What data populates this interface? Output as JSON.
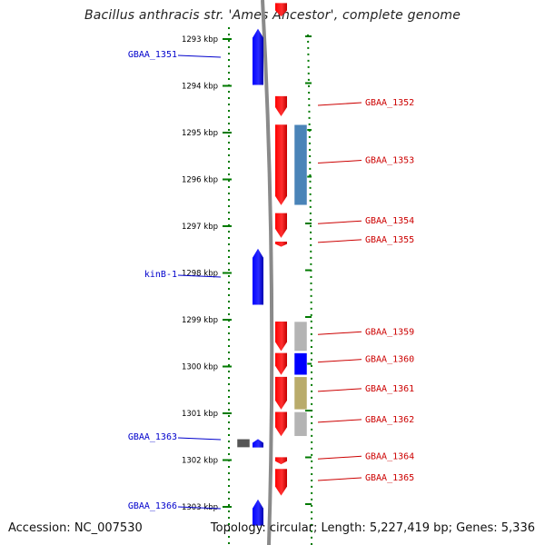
{
  "title": "Bacillus anthracis str. 'Ames Ancestor', complete genome",
  "accession": "Accession: NC_007530",
  "summary": "Topology: circular; Length: 5,227,419 bp; Genes: 5,336",
  "colors": {
    "forward": "#ff0000",
    "reverse": "#0000ff",
    "backbone": "#8a8a8a",
    "ticks": "#007a00",
    "cog_steel": "#4a84b8",
    "cog_grey": "#b4b4b4",
    "cog_olive": "#b9ab6b",
    "cog_dark": "#555555"
  },
  "ruler": [
    {
      "label": "1293 kbp",
      "kbp": 1293
    },
    {
      "label": "1294 kbp",
      "kbp": 1294
    },
    {
      "label": "1295 kbp",
      "kbp": 1295
    },
    {
      "label": "1296 kbp",
      "kbp": 1296
    },
    {
      "label": "1297 kbp",
      "kbp": 1297
    },
    {
      "label": "1298 kbp",
      "kbp": 1298
    },
    {
      "label": "1299 kbp",
      "kbp": 1299
    },
    {
      "label": "1300 kbp",
      "kbp": 1300
    },
    {
      "label": "1301 kbp",
      "kbp": 1301
    },
    {
      "label": "1302 kbp",
      "kbp": 1302
    },
    {
      "label": "1303 kbp",
      "kbp": 1303
    }
  ],
  "genes": [
    {
      "name": "GBAA_1351",
      "strand": "-",
      "start": 1292.78,
      "end": 1293.98
    },
    {
      "name": "GBAA_1352",
      "strand": "+",
      "start": 1294.22,
      "end": 1294.65
    },
    {
      "name": "GBAA_1353",
      "strand": "+",
      "start": 1294.83,
      "end": 1296.55
    },
    {
      "name": "GBAA_1354",
      "strand": "+",
      "start": 1296.72,
      "end": 1297.25
    },
    {
      "name": "GBAA_1355",
      "strand": "+",
      "start": 1297.33,
      "end": 1297.44
    },
    {
      "name": "kinB-1",
      "strand": "-",
      "start": 1297.48,
      "end": 1298.68
    },
    {
      "name": "GBAA_1359",
      "strand": "+",
      "start": 1299.04,
      "end": 1299.67
    },
    {
      "name": "GBAA_1360",
      "strand": "+",
      "start": 1299.71,
      "end": 1300.18
    },
    {
      "name": "GBAA_1361",
      "strand": "+",
      "start": 1300.22,
      "end": 1300.92
    },
    {
      "name": "GBAA_1362",
      "strand": "+",
      "start": 1300.97,
      "end": 1301.49
    },
    {
      "name": "GBAA_1363",
      "strand": "-",
      "start": 1301.55,
      "end": 1301.73
    },
    {
      "name": "GBAA_1364",
      "strand": "+",
      "start": 1301.94,
      "end": 1302.09
    },
    {
      "name": "GBAA_1365",
      "strand": "+",
      "start": 1302.19,
      "end": 1302.76
    },
    {
      "name": "GBAA_1366",
      "strand": "-",
      "start": 1302.84,
      "end": 1303.4
    }
  ],
  "unlabeled_genes": [
    {
      "strand": "+",
      "start": 1292.23,
      "end": 1292.52
    }
  ],
  "cog_boxes": [
    {
      "color": "#4a84b8",
      "start": 1294.83,
      "end": 1296.55
    },
    {
      "color": "#b4b4b4",
      "start": 1299.04,
      "end": 1299.67
    },
    {
      "color": "#0000ff",
      "start": 1299.71,
      "end": 1300.18
    },
    {
      "color": "#b9ab6b",
      "start": 1300.22,
      "end": 1300.92
    },
    {
      "color": "#b4b4b4",
      "start": 1300.97,
      "end": 1301.49
    },
    {
      "color": "#555555",
      "start": 1301.55,
      "end": 1301.73
    }
  ]
}
